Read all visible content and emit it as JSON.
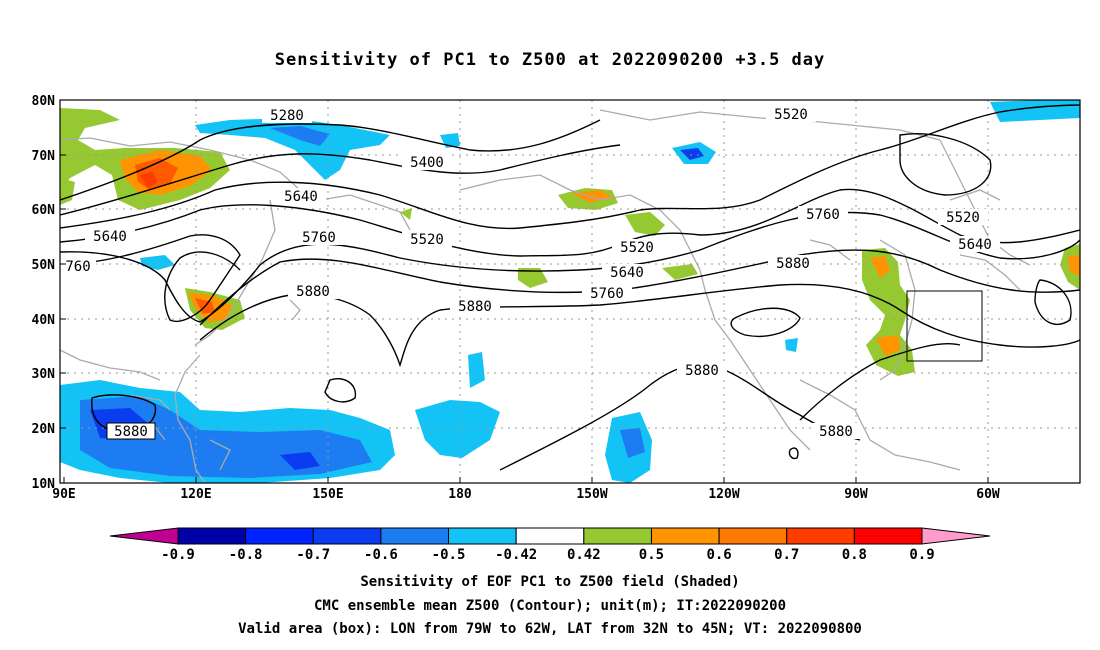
{
  "title": "Sensitivity of PC1 to Z500 at 2022090200 +3.5 day",
  "map": {
    "lon_labels": [
      "90E",
      "120E",
      "150E",
      "180",
      "150W",
      "120W",
      "90W",
      "60W"
    ],
    "lat_labels": [
      "80N",
      "70N",
      "60N",
      "50N",
      "40N",
      "30N",
      "20N",
      "10N"
    ],
    "contour_labels": [
      "5280",
      "5400",
      "5520",
      "5520",
      "5640",
      "5640",
      "5640",
      "5760",
      "5760",
      "5760",
      "5880",
      "5880",
      "5880",
      "5880",
      "5880",
      "5520",
      "5520",
      "5640",
      "760"
    ],
    "valid_box": {
      "lon_from": "79W",
      "lon_to": "62W",
      "lat_from": "32N",
      "lat_to": "45N"
    }
  },
  "colorbar": {
    "labels": [
      "-0.9",
      "-0.8",
      "-0.7",
      "-0.6",
      "-0.5",
      "-0.42",
      "0.42",
      "0.5",
      "0.6",
      "0.7",
      "0.8",
      "0.9"
    ],
    "colors": [
      "#c00090",
      "#0000a8",
      "#0024ff",
      "#0a3cf0",
      "#1e7cf2",
      "#14c3f5",
      "#ffffff",
      "#96c832",
      "#ff9400",
      "#ff7800",
      "#ff3c00",
      "#ff0000",
      "#ff9ccc"
    ]
  },
  "captions": [
    "Sensitivity of EOF PC1 to Z500 field (Shaded)",
    "CMC ensemble mean Z500 (Contour); unit(m); IT:2022090200",
    "Valid area (box): LON from 79W to 62W, LAT from 32N to 45N; VT: 2022090800"
  ]
}
